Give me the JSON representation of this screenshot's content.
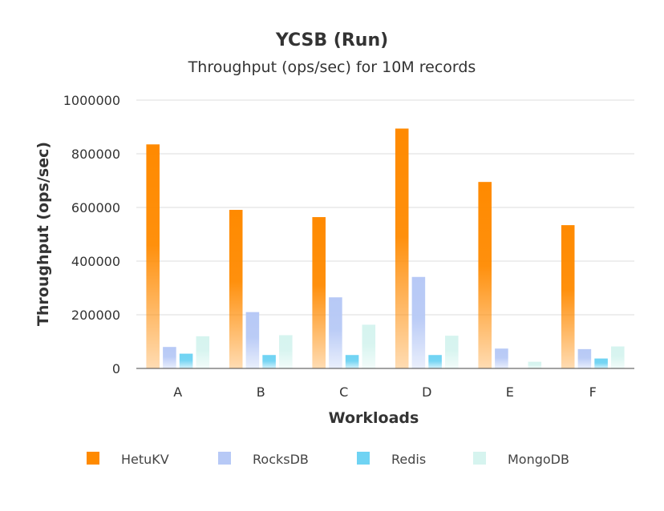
{
  "chart_data": {
    "type": "bar",
    "title": "YCSB (Run)",
    "subtitle": "Throughput (ops/sec) for 10M records",
    "xlabel": "Workloads",
    "ylabel": "Throughput (ops/sec)",
    "ylim": [
      0,
      1000000
    ],
    "yticks": [
      "0",
      "200000",
      "400000",
      "600000",
      "800000",
      "1000000"
    ],
    "categories": [
      "A",
      "B",
      "C",
      "D",
      "E",
      "F"
    ],
    "grid": true,
    "legend_position": "bottom",
    "series": [
      {
        "name": "HetuKV",
        "color": "#ff8a00",
        "values": [
          835000,
          591000,
          564000,
          894000,
          695000,
          534000
        ]
      },
      {
        "name": "RocksDB",
        "color": "#b7c9f6",
        "values": [
          80000,
          210000,
          265000,
          341000,
          74000,
          72000
        ]
      },
      {
        "name": "Redis",
        "color": "#6fd3f3",
        "values": [
          55000,
          50000,
          50000,
          50000,
          0,
          37000
        ]
      },
      {
        "name": "MongoDB",
        "color": "#d6f4ef",
        "values": [
          120000,
          124000,
          163000,
          122000,
          25000,
          82000
        ]
      }
    ]
  }
}
